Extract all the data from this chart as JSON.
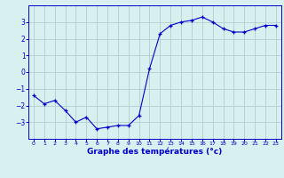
{
  "x": [
    0,
    1,
    2,
    3,
    4,
    5,
    6,
    7,
    8,
    9,
    10,
    11,
    12,
    13,
    14,
    15,
    16,
    17,
    18,
    19,
    20,
    21,
    22,
    23
  ],
  "y": [
    -1.4,
    -1.9,
    -1.7,
    -2.3,
    -3.0,
    -2.7,
    -3.4,
    -3.3,
    -3.2,
    -3.2,
    -2.6,
    0.2,
    2.3,
    2.8,
    3.0,
    3.1,
    3.3,
    3.0,
    2.6,
    2.4,
    2.4,
    2.6,
    2.8,
    2.8
  ],
  "line_color": "#0000cc",
  "marker": "+",
  "marker_size": 3,
  "bg_color": "#d8f0f0",
  "grid_color": "#b0cece",
  "xlabel": "Graphe des températures (°c)",
  "xlabel_color": "#0000cc",
  "tick_color": "#0000cc",
  "axis_color": "#0000cc",
  "ylim": [
    -4,
    4
  ],
  "xlim": [
    -0.5,
    23.5
  ],
  "yticks": [
    -3,
    -2,
    -1,
    0,
    1,
    2,
    3
  ],
  "xticks": [
    0,
    1,
    2,
    3,
    4,
    5,
    6,
    7,
    8,
    9,
    10,
    11,
    12,
    13,
    14,
    15,
    16,
    17,
    18,
    19,
    20,
    21,
    22,
    23
  ]
}
